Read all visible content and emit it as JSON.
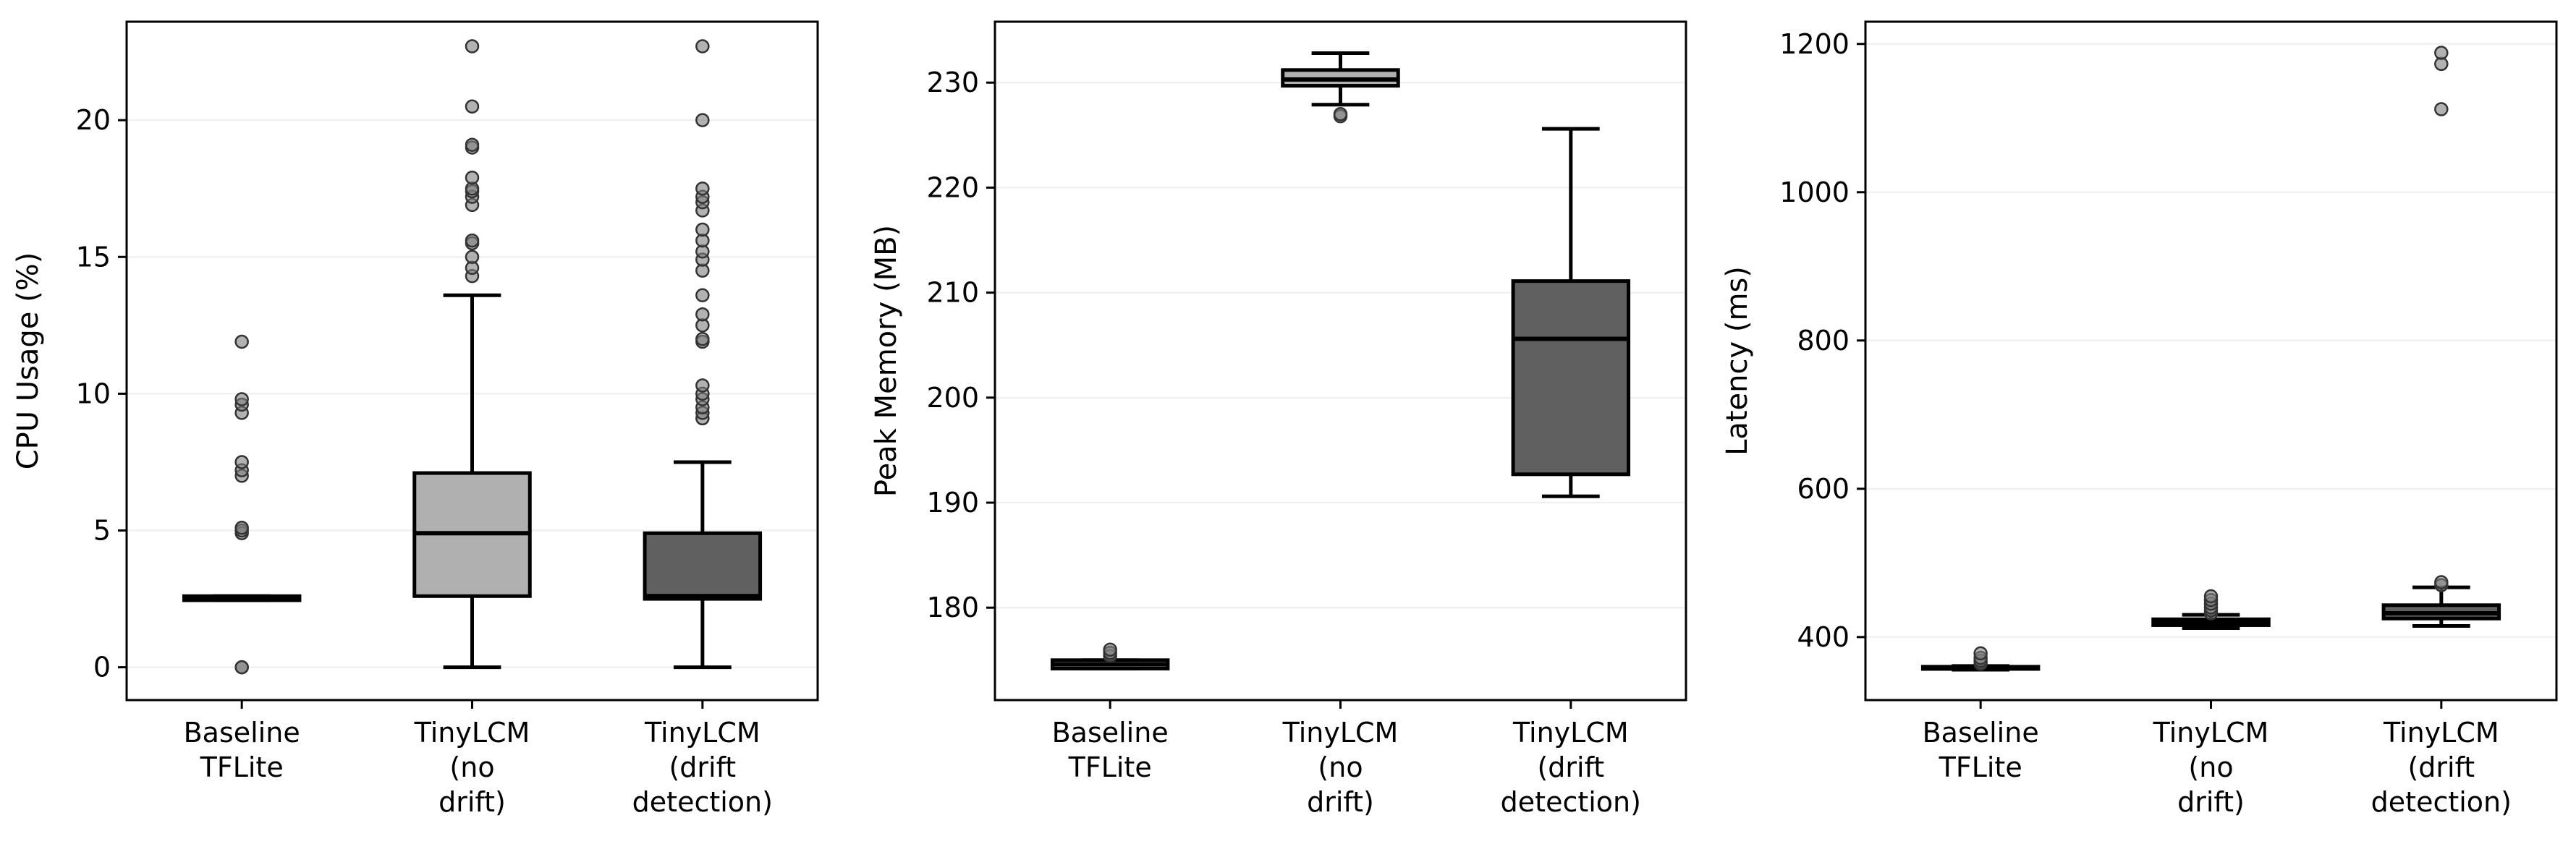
{
  "chart_data": [
    {
      "type": "box",
      "ylabel": "CPU Usage (%)",
      "ylim": [
        -1.2,
        23.6
      ],
      "yticks": [
        0,
        5,
        10,
        15,
        20
      ],
      "grid": "horizontal, faint",
      "categories": [
        [
          "Baseline",
          "TFLite"
        ],
        [
          "TinyLCM",
          "(no",
          "drift)"
        ],
        [
          "TinyLCM",
          "(drift",
          "detection)"
        ]
      ],
      "boxes": [
        {
          "whislo": 2.45,
          "q1": 2.45,
          "median": 2.55,
          "q3": 2.6,
          "whishi": 2.6,
          "color": "#d0d0d0",
          "fliers": [
            0,
            0,
            4.9,
            5.0,
            5.1,
            7.0,
            7.2,
            7.5,
            9.3,
            9.6,
            9.8,
            11.9
          ]
        },
        {
          "whislo": 0,
          "q1": 2.6,
          "median": 4.9,
          "q3": 7.1,
          "whishi": 13.6,
          "color": "#b0b0b0",
          "fliers": [
            14.3,
            14.6,
            15.0,
            15.5,
            15.6,
            16.9,
            17.2,
            17.4,
            17.5,
            17.9,
            19.0,
            19.1,
            20.5,
            22.7
          ]
        },
        {
          "whislo": 0,
          "q1": 2.5,
          "median": 2.6,
          "q3": 4.9,
          "whishi": 7.5,
          "color": "#606060",
          "fliers": [
            9.1,
            9.3,
            9.5,
            9.8,
            10.0,
            10.3,
            11.9,
            12.0,
            12.5,
            12.9,
            13.6,
            14.5,
            14.9,
            15.2,
            15.6,
            16.0,
            16.7,
            17.0,
            17.2,
            17.5,
            20.0,
            22.7
          ]
        }
      ]
    },
    {
      "type": "box",
      "ylabel": "Peak Memory (MB)",
      "ylim": [
        171.2,
        235.8
      ],
      "yticks": [
        180,
        190,
        200,
        210,
        220,
        230
      ],
      "grid": "horizontal, faint",
      "categories": [
        [
          "Baseline",
          "TFLite"
        ],
        [
          "TinyLCM",
          "(no",
          "drift)"
        ],
        [
          "TinyLCM",
          "(drift",
          "detection)"
        ]
      ],
      "boxes": [
        {
          "whislo": 174.2,
          "q1": 174.2,
          "median": 174.6,
          "q3": 175.0,
          "whishi": 175.0,
          "color": "#d0d0d0",
          "fliers": [
            175.4,
            175.7,
            176.0
          ]
        },
        {
          "whislo": 227.9,
          "q1": 229.7,
          "median": 230.3,
          "q3": 231.2,
          "whishi": 232.8,
          "color": "#b0b0b0",
          "fliers": [
            226.8,
            227.0
          ]
        },
        {
          "whislo": 190.6,
          "q1": 192.7,
          "median": 205.6,
          "q3": 211.1,
          "whishi": 225.6,
          "color": "#606060",
          "fliers": []
        }
      ]
    },
    {
      "type": "box",
      "ylabel": "Latency (ms)",
      "ylim": [
        315,
        1230
      ],
      "yticks": [
        400,
        600,
        800,
        1000,
        1200
      ],
      "grid": "horizontal, faint",
      "categories": [
        [
          "Baseline",
          "TFLite"
        ],
        [
          "TinyLCM",
          "(no",
          "drift)"
        ],
        [
          "TinyLCM",
          "(drift",
          "detection)"
        ]
      ],
      "boxes": [
        {
          "whislo": 356,
          "q1": 357,
          "median": 358,
          "q3": 360,
          "whishi": 361,
          "color": "#d0d0d0",
          "fliers": [
            364,
            368,
            372,
            378
          ]
        },
        {
          "whislo": 412,
          "q1": 416,
          "median": 420,
          "q3": 424,
          "whishi": 430,
          "color": "#b0b0b0",
          "fliers": [
            432,
            436,
            440,
            445,
            450,
            455
          ]
        },
        {
          "whislo": 415,
          "q1": 425,
          "median": 432,
          "q3": 443,
          "whishi": 467,
          "color": "#606060",
          "fliers": [
            470,
            474,
            1112,
            1173,
            1188
          ]
        }
      ]
    }
  ]
}
